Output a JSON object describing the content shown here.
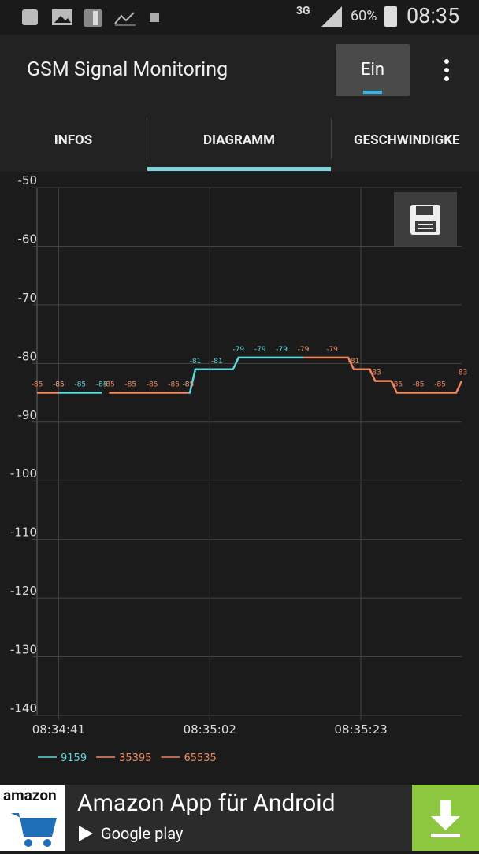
{
  "status_bar": {
    "network": "3G",
    "battery": "60%",
    "time": "08:35"
  },
  "app_bar": {
    "title": "GSM Signal Monitoring",
    "toggle": "Ein"
  },
  "tabs": [
    "INFOS",
    "DIAGRAMM",
    "GESCHWINDIGKE"
  ],
  "chart_data": {
    "type": "line",
    "xlim": [
      "08:34:38",
      "08:35:37"
    ],
    "xticks": [
      "08:34:41",
      "08:35:02",
      "08:35:23"
    ],
    "ylim": [
      -140,
      -50
    ],
    "yticks": [
      -140,
      -130,
      -120,
      -110,
      -100,
      -90,
      -80,
      -70,
      -60,
      -50
    ],
    "grid": true,
    "series": [
      {
        "name": "9159",
        "color": "#5fd6da",
        "x": [
          "08:34:41",
          "08:34:44",
          "08:34:47",
          null,
          "08:34:59",
          "08:35:00",
          "08:35:03",
          "08:35:06",
          "08:35:09",
          "08:35:12",
          "08:35:15"
        ],
        "values": [
          -85,
          -85,
          -85,
          null,
          -85,
          -81,
          -81,
          -79,
          -79,
          -79,
          -79
        ]
      },
      {
        "name": "35395",
        "color": "#ef8a5e",
        "x": [
          "08:34:38",
          "08:34:41",
          null,
          "08:34:48",
          "08:34:51",
          "08:34:54",
          "08:34:57",
          "08:34:59"
        ],
        "values": [
          -85,
          -85,
          null,
          -85,
          -85,
          -85,
          -85,
          -85
        ]
      },
      {
        "name": "65535",
        "color": "#f08660",
        "x": [
          "08:35:15",
          "08:35:19",
          "08:35:22",
          "08:35:25",
          "08:35:28",
          "08:35:31",
          "08:35:34",
          "08:35:37"
        ],
        "values": [
          -79,
          -79,
          -81,
          -83,
          -85,
          -85,
          -85,
          -83
        ]
      }
    ]
  },
  "ad": {
    "brand": "amazon",
    "title": "Amazon App für Android",
    "store": "Google play"
  }
}
